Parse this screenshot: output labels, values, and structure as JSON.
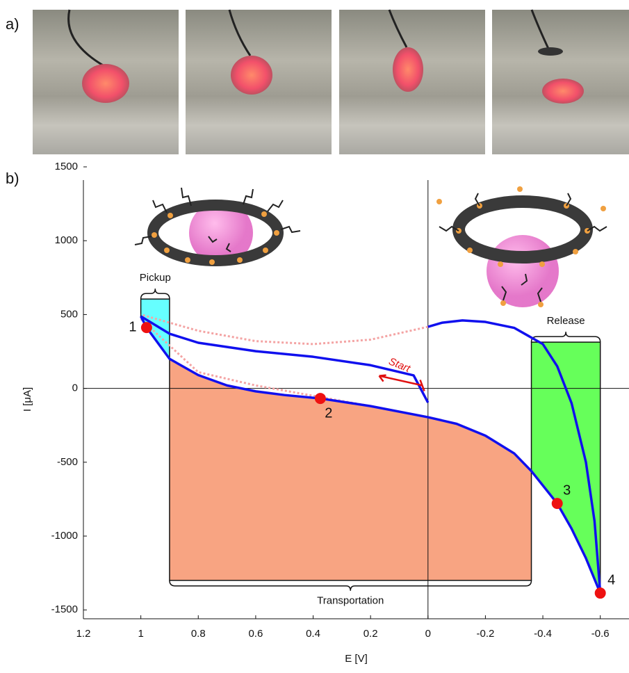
{
  "panel_labels": [
    "a)",
    "b)"
  ],
  "chart_data": {
    "type": "line",
    "xlabel": "E [V]",
    "ylabel": "I [μA]",
    "xlim": [
      1.2,
      -0.7
    ],
    "xticks": [
      1.2,
      1,
      0.8,
      0.6,
      0.4,
      0.2,
      0,
      -0.2,
      -0.4,
      -0.6
    ],
    "ylim": [
      -1560,
      1500
    ],
    "yticks": [
      1500,
      1000,
      500,
      0,
      -500,
      -1000,
      -1500
    ],
    "series": [
      {
        "color": "#1010ee",
        "style": "solid",
        "x": [
          0,
          0.05,
          0.2,
          0.4,
          0.6,
          0.8,
          0.9,
          1.0
        ],
        "values": [
          -96,
          88,
          157,
          214,
          252,
          309,
          370,
          488
        ]
      },
      {
        "color": "#1010ee",
        "style": "solid",
        "x": [
          1.0,
          0.98,
          0.9,
          0.8,
          0.7,
          0.6,
          0.5,
          0.375,
          0.2,
          0,
          -0.1,
          -0.2,
          -0.3,
          -0.36,
          -0.45,
          -0.5,
          -0.55,
          -0.6
        ],
        "values": [
          488,
          412,
          200,
          90,
          20,
          -20,
          -45,
          -68,
          -120,
          -195,
          -240,
          -320,
          -440,
          -560,
          -779,
          -950,
          -1150,
          -1386
        ]
      },
      {
        "color": "#1010ee",
        "style": "solid",
        "x": [
          -0.6,
          -0.58,
          -0.55,
          -0.5,
          -0.45,
          -0.4,
          -0.3,
          -0.2,
          -0.12,
          -0.05,
          0
        ],
        "values": [
          -1386,
          -900,
          -500,
          -100,
          150,
          300,
          410,
          450,
          460,
          445,
          417
        ]
      },
      {
        "color": "#f4a4a4",
        "style": "dotted",
        "x": [
          0,
          0.2,
          0.4,
          0.6,
          0.8,
          1.0
        ],
        "values": [
          417,
          330,
          300,
          320,
          390,
          500
        ]
      },
      {
        "color": "#f4a4a4",
        "style": "dotted",
        "x": [
          1.0,
          0.8,
          0.6,
          0.4,
          0.2
        ],
        "values": [
          470,
          110,
          20,
          -50,
          -120
        ]
      }
    ],
    "points": {
      "color": "#ee1111",
      "labels": [
        "1",
        "2",
        "3",
        "4"
      ],
      "x": [
        0.98,
        0.375,
        -0.45,
        -0.6
      ],
      "values": [
        412,
        -68,
        -779,
        -1386
      ]
    },
    "regions": [
      {
        "label": "Pickup",
        "color": "#66ffff",
        "x": [
          1.0,
          0.9
        ],
        "level": 605
      },
      {
        "label": "Transportation",
        "color": "#f8a482",
        "x": [
          0.9,
          -0.36
        ],
        "level": -1300
      },
      {
        "label": "Release",
        "color": "#66ff5a",
        "x": [
          -0.36,
          -0.6
        ],
        "level": 313
      }
    ],
    "annotation": "Start"
  }
}
